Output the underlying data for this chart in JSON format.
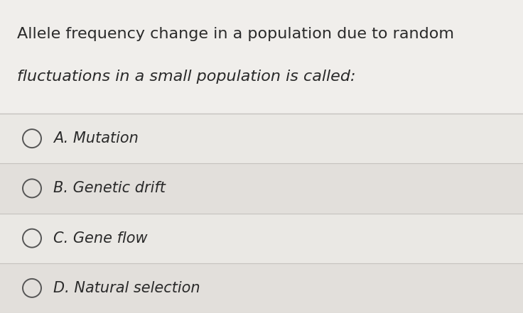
{
  "question_line1": "Allele frequency change in a population due to random",
  "question_line2": "fluctuations in a small population is called:",
  "options": [
    "A. Mutation",
    "B. Genetic drift",
    "C. Gene flow",
    "D. Natural selection"
  ],
  "bg_color": "#e8e5e1",
  "text_color": "#2a2a2a",
  "question_fontsize": 16,
  "option_fontsize": 15,
  "line_color": "#c5c2be",
  "question_bg": "#d8d5d1",
  "fig_width": 7.36,
  "fig_height": 4.41,
  "dpi": 100
}
